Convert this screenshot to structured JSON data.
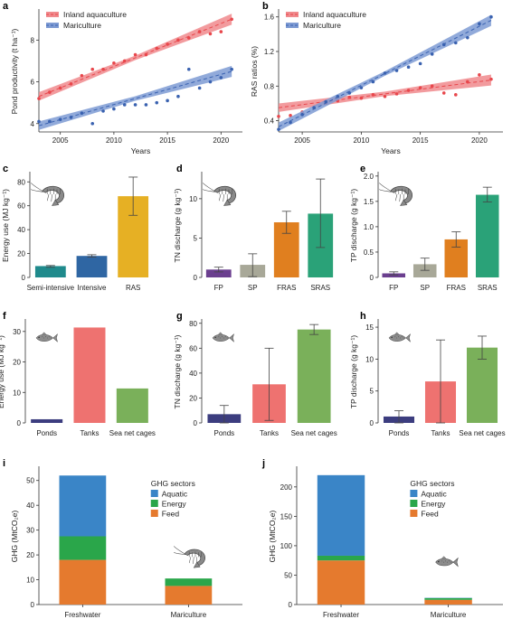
{
  "chart_data": [
    {
      "id": "a",
      "type": "scatter",
      "panel_label": "a",
      "xlabel": "Years",
      "ylabel": "Pond productivity (t ha⁻¹)",
      "xlim": [
        2003,
        2022
      ],
      "ylim": [
        3.6,
        9.4
      ],
      "xticks": [
        2005,
        2010,
        2015,
        2020
      ],
      "yticks": [
        4,
        6,
        8
      ],
      "legend_position": "top-left",
      "grid": false,
      "series": [
        {
          "name": "Inland aquaculture",
          "color": "#e8474c",
          "band": "#f08a8d",
          "x": [
            2003,
            2004,
            2005,
            2006,
            2007,
            2008,
            2009,
            2010,
            2011,
            2012,
            2013,
            2014,
            2015,
            2016,
            2017,
            2018,
            2019,
            2020,
            2021
          ],
          "y": [
            5.2,
            5.5,
            5.7,
            5.9,
            6.3,
            6.6,
            6.6,
            6.9,
            7.0,
            7.3,
            7.3,
            7.6,
            7.8,
            8.0,
            8.1,
            8.4,
            8.3,
            8.4,
            9.0
          ],
          "fit": [
            5.3,
            9.0
          ]
        },
        {
          "name": "Mariculture",
          "color": "#3a62b0",
          "band": "#7e9bd3",
          "x": [
            2003,
            2004,
            2005,
            2006,
            2007,
            2008,
            2009,
            2010,
            2011,
            2012,
            2013,
            2014,
            2015,
            2016,
            2017,
            2018,
            2019,
            2020,
            2021
          ],
          "y": [
            4.1,
            4.1,
            4.2,
            4.3,
            4.5,
            4.0,
            4.6,
            4.7,
            4.9,
            4.9,
            4.9,
            5.0,
            5.1,
            5.3,
            6.6,
            5.7,
            6.0,
            6.2,
            6.6
          ],
          "fit": [
            3.9,
            6.5
          ]
        }
      ]
    },
    {
      "id": "b",
      "type": "scatter",
      "panel_label": "b",
      "xlabel": "Years",
      "ylabel": "RAS ratios (%)",
      "xlim": [
        2003,
        2022
      ],
      "ylim": [
        0.27,
        1.67
      ],
      "xticks": [
        2005,
        2010,
        2015,
        2020
      ],
      "yticks": [
        0.4,
        0.8,
        1.2,
        1.6
      ],
      "legend_position": "top-left",
      "grid": false,
      "series": [
        {
          "name": "Inland aquaculture",
          "color": "#e8474c",
          "band": "#f08a8d",
          "x": [
            2003,
            2004,
            2005,
            2006,
            2007,
            2008,
            2009,
            2010,
            2011,
            2012,
            2013,
            2014,
            2015,
            2016,
            2017,
            2018,
            2019,
            2020,
            2021
          ],
          "y": [
            0.45,
            0.46,
            0.5,
            0.55,
            0.6,
            0.63,
            0.67,
            0.66,
            0.7,
            0.68,
            0.71,
            0.75,
            0.78,
            0.8,
            0.72,
            0.7,
            0.85,
            0.93,
            0.88
          ],
          "fit": [
            0.55,
            0.87
          ]
        },
        {
          "name": "Mariculture",
          "color": "#3a62b0",
          "band": "#7e9bd3",
          "x": [
            2003,
            2004,
            2005,
            2006,
            2007,
            2008,
            2009,
            2010,
            2011,
            2012,
            2013,
            2014,
            2015,
            2016,
            2017,
            2018,
            2019,
            2020,
            2021
          ],
          "y": [
            0.3,
            0.38,
            0.47,
            0.55,
            0.62,
            0.68,
            0.72,
            0.78,
            0.85,
            0.95,
            0.98,
            1.02,
            1.06,
            1.17,
            1.28,
            1.3,
            1.36,
            1.52,
            1.6
          ],
          "fit": [
            0.33,
            1.56
          ]
        }
      ]
    },
    {
      "id": "c",
      "type": "bar",
      "panel_label": "c",
      "ylabel": "Energy use (MJ kg⁻¹)",
      "ylim": [
        0,
        87
      ],
      "yticks": [
        0,
        20,
        40,
        60,
        80
      ],
      "categories": [
        "Semi-intensive",
        "Intensive",
        "RAS"
      ],
      "values": [
        9.5,
        18,
        68
      ],
      "err_low": [
        8.5,
        17,
        52
      ],
      "err_high": [
        10,
        19,
        84
      ],
      "colors": [
        "#1f8a8c",
        "#2f66a3",
        "#e6b024"
      ],
      "icon": "shrimp-icon"
    },
    {
      "id": "d",
      "type": "bar",
      "panel_label": "d",
      "ylabel": "TN discharge (g kg⁻¹)",
      "ylim": [
        0,
        13.2
      ],
      "yticks": [
        0,
        5,
        10
      ],
      "categories": [
        "FP",
        "SP",
        "FRAS",
        "SRAS"
      ],
      "values": [
        1.0,
        1.6,
        7.0,
        8.1
      ],
      "err_low": [
        0.7,
        0.1,
        5.6,
        3.8
      ],
      "err_high": [
        1.3,
        3.0,
        8.4,
        12.5
      ],
      "colors": [
        "#6b3f8f",
        "#a8a898",
        "#e07f1f",
        "#2aa278"
      ],
      "icon": "shrimp-icon"
    },
    {
      "id": "e",
      "type": "bar",
      "panel_label": "e",
      "ylabel": "TP discharge (g kg⁻¹)",
      "ylim": [
        0,
        2.05
      ],
      "yticks": [
        0,
        0.5,
        1.0,
        1.5,
        2.0
      ],
      "ytick_labels": [
        "0",
        "0.5",
        "1.0",
        "1.5",
        "2.0"
      ],
      "categories": [
        "FP",
        "SP",
        "FRAS",
        "SRAS"
      ],
      "values": [
        0.08,
        0.26,
        0.75,
        1.63
      ],
      "err_low": [
        0.05,
        0.14,
        0.6,
        1.49
      ],
      "err_high": [
        0.11,
        0.38,
        0.9,
        1.78
      ],
      "colors": [
        "#6b3f8f",
        "#a8a898",
        "#e07f1f",
        "#2aa278"
      ],
      "icon": "shrimp-icon"
    },
    {
      "id": "f",
      "type": "bar",
      "panel_label": "f",
      "ylabel": "Energy use (MJ kg⁻¹)",
      "ylim": [
        0,
        33.5
      ],
      "yticks": [
        0,
        10,
        20,
        30
      ],
      "categories": [
        "Ponds",
        "Tanks",
        "Sea net cages"
      ],
      "values": [
        1.2,
        31.3,
        11.3
      ],
      "colors": [
        "#3c3d7f",
        "#ee7270",
        "#7ab05a"
      ],
      "icon": "fish-icon"
    },
    {
      "id": "g",
      "type": "bar",
      "panel_label": "g",
      "ylabel": "TN discharge (g kg⁻¹)",
      "ylim": [
        0,
        82
      ],
      "yticks": [
        0,
        20,
        40,
        60,
        80
      ],
      "categories": [
        "Ponds",
        "Tanks",
        "Sea net cages"
      ],
      "values": [
        7,
        31,
        75
      ],
      "err_low": [
        0,
        2,
        71
      ],
      "err_high": [
        14,
        60,
        79
      ],
      "colors": [
        "#3c3d7f",
        "#ee7270",
        "#7ab05a"
      ],
      "icon": "fish-icon"
    },
    {
      "id": "h",
      "type": "bar",
      "panel_label": "h",
      "ylabel": "TP discharge (g kg⁻¹)",
      "ylim": [
        0,
        16
      ],
      "yticks": [
        0,
        5,
        10,
        15
      ],
      "categories": [
        "Ponds",
        "Tanks",
        "Sea net cages"
      ],
      "values": [
        1.0,
        6.5,
        11.8
      ],
      "err_low": [
        0,
        0,
        10
      ],
      "err_high": [
        1.9,
        13,
        13.6
      ],
      "colors": [
        "#3c3d7f",
        "#ee7270",
        "#7ab05a"
      ],
      "icon": "fish-icon"
    },
    {
      "id": "i",
      "type": "bar",
      "stacked": true,
      "panel_label": "i",
      "ylabel": "GHG (MtCO₂e)",
      "ylim": [
        0,
        55
      ],
      "yticks": [
        0,
        10,
        20,
        30,
        40,
        50
      ],
      "categories": [
        "Freshwater",
        "Mariculture"
      ],
      "legend_title": "GHG sectors",
      "legend_position": "center-right",
      "series": [
        {
          "name": "Feed",
          "color": "#e57a2e",
          "values": [
            18,
            7.5
          ]
        },
        {
          "name": "Energy",
          "color": "#2aa64a",
          "values": [
            9.5,
            3.0
          ]
        },
        {
          "name": "Aquatic",
          "color": "#3a85c7",
          "values": [
            24.5,
            0
          ]
        }
      ],
      "icon": "shrimp-icon"
    },
    {
      "id": "j",
      "type": "bar",
      "stacked": true,
      "panel_label": "j",
      "ylabel": "GHG (MtCO₂e)",
      "ylim": [
        0,
        232
      ],
      "yticks": [
        0,
        50,
        100,
        150,
        200
      ],
      "categories": [
        "Freshwater",
        "Mariculture"
      ],
      "legend_title": "GHG sectors",
      "legend_position": "center-right",
      "series": [
        {
          "name": "Feed",
          "color": "#e57a2e",
          "values": [
            75,
            8
          ]
        },
        {
          "name": "Energy",
          "color": "#2aa64a",
          "values": [
            8,
            3
          ]
        },
        {
          "name": "Aquatic",
          "color": "#3a85c7",
          "values": [
            137,
            0.5
          ]
        }
      ],
      "icon": "fish-icon"
    }
  ]
}
